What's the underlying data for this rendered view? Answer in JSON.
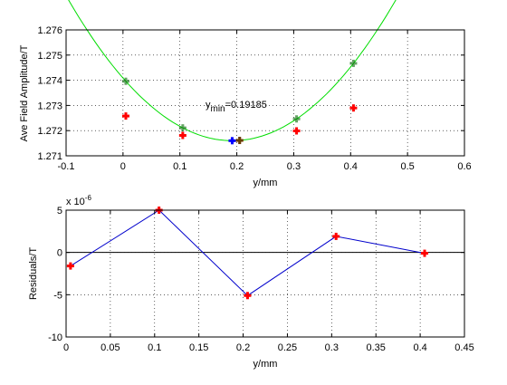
{
  "colors": {
    "fit_curve": "#00dd00",
    "measured_marker": "#ff0000",
    "fit_marker": "#006600",
    "minimum_marker": "#0000ff",
    "residual_line": "#0000cc"
  },
  "chart_data": [
    {
      "type": "scatter",
      "xlabel": "y/mm",
      "ylabel": "Ave Field Amplitude/T",
      "xlim": [
        -0.1,
        0.6
      ],
      "ylim": [
        1.271,
        1.276
      ],
      "xticks": [
        "-0.1",
        "0",
        "0.1",
        "0.2",
        "0.3",
        "0.4",
        "0.5",
        "0.6"
      ],
      "yticks": [
        "1.271",
        "1.272",
        "1.273",
        "1.274",
        "1.275",
        "1.276"
      ],
      "grid": true,
      "annotation": {
        "prefix": "y",
        "subscript": "min",
        "text": "=0.19185",
        "x": 0.145,
        "y": 1.2729
      },
      "series": [
        {
          "kind": "line",
          "fit": {
            "vertex_x": 0.19185,
            "vertex_y": 1.2716,
            "curvature": 0.0676,
            "x_from": -0.1,
            "x_to": 0.5
          }
        },
        {
          "kind": "markers",
          "x": [
            0.005,
            0.105,
            0.205,
            0.305,
            0.405
          ],
          "y": [
            1.27258,
            1.27181,
            1.27161,
            1.27199,
            1.2729
          ]
        },
        {
          "kind": "minimum",
          "x": [
            0.19185
          ],
          "y": [
            1.2716
          ]
        }
      ]
    },
    {
      "type": "line",
      "xlabel": "y/mm",
      "ylabel": "Residuals/T",
      "exponent_label": "x 10",
      "exponent_power": "-6",
      "xlim": [
        0,
        0.45
      ],
      "ylim": [
        -10,
        5
      ],
      "xticks": [
        "0",
        "0.05",
        "0.1",
        "0.15",
        "0.2",
        "0.25",
        "0.3",
        "0.35",
        "0.4",
        "0.45"
      ],
      "yticks": [
        "-10",
        "-5",
        "0",
        "5"
      ],
      "grid": true,
      "zero_line": true,
      "series": [
        {
          "x": [
            0.005,
            0.105,
            0.205,
            0.305,
            0.405
          ],
          "y": [
            -1.6,
            5.0,
            -5.1,
            1.9,
            -0.1
          ]
        }
      ]
    }
  ]
}
